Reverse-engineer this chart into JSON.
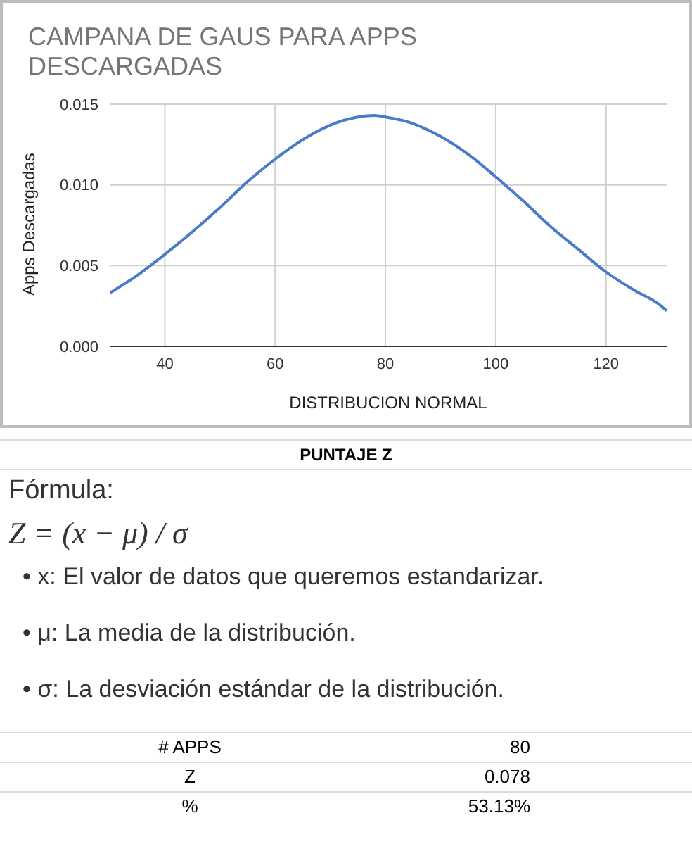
{
  "chart_data": {
    "type": "line",
    "title": "CAMPANA DE GAUS PARA APPS DESCARGADAS",
    "xlabel": "DISTRIBUCION NORMAL",
    "ylabel": "Apps Descargadas",
    "x": [
      30,
      35,
      40,
      45,
      50,
      55,
      60,
      65,
      70,
      75,
      78,
      80,
      85,
      90,
      95,
      100,
      105,
      110,
      115,
      120,
      125,
      130,
      131
    ],
    "series": [
      {
        "color": "#4a7bc8",
        "values": [
          0.0033,
          0.0044,
          0.0057,
          0.0071,
          0.0086,
          0.0102,
          0.0116,
          0.0128,
          0.0137,
          0.0142,
          0.0143,
          0.0142,
          0.0138,
          0.013,
          0.0119,
          0.0105,
          0.009,
          0.0074,
          0.006,
          0.0046,
          0.0035,
          0.0025,
          0.0022
        ]
      }
    ],
    "xlim": [
      30,
      131
    ],
    "xticks": [
      40,
      60,
      80,
      100,
      120
    ],
    "ylim": [
      0,
      0.015
    ],
    "yticks": [
      {
        "value": 0,
        "label": "0.000"
      },
      {
        "value": 0.005,
        "label": "0.005"
      },
      {
        "value": 0.01,
        "label": "0.010"
      },
      {
        "value": 0.015,
        "label": "0.015"
      }
    ],
    "grid": true,
    "legend": false,
    "marker": "none",
    "line_style": "solid",
    "annotations": [
      "PUNTAJE Z",
      "Fórmula:",
      "Z = (x − μ) / σ",
      "• x: El valor de datos que queremos estandarizar.",
      "• μ: La media de la distribución.",
      "• σ: La desviación estándar de la distribución.",
      "# APPS",
      "80",
      "Z",
      "0.078",
      "%",
      "53.13%"
    ]
  }
}
